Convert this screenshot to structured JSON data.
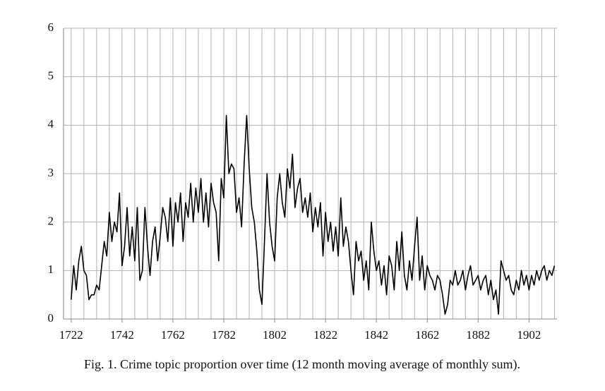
{
  "chart_data": {
    "type": "line",
    "caption": "Fig. 1. Crime topic proportion over time (12 month moving average of monthly sum).",
    "x": [
      1722,
      1723,
      1724,
      1725,
      1726,
      1727,
      1728,
      1729,
      1730,
      1731,
      1732,
      1733,
      1734,
      1735,
      1736,
      1737,
      1738,
      1739,
      1740,
      1741,
      1742,
      1743,
      1744,
      1745,
      1746,
      1747,
      1748,
      1749,
      1750,
      1751,
      1752,
      1753,
      1754,
      1755,
      1756,
      1757,
      1758,
      1759,
      1760,
      1761,
      1762,
      1763,
      1764,
      1765,
      1766,
      1767,
      1768,
      1769,
      1770,
      1771,
      1772,
      1773,
      1774,
      1775,
      1776,
      1777,
      1778,
      1779,
      1780,
      1781,
      1782,
      1783,
      1784,
      1785,
      1786,
      1787,
      1788,
      1789,
      1790,
      1791,
      1792,
      1793,
      1794,
      1795,
      1796,
      1797,
      1798,
      1799,
      1800,
      1801,
      1802,
      1803,
      1804,
      1805,
      1806,
      1807,
      1808,
      1809,
      1810,
      1811,
      1812,
      1813,
      1814,
      1815,
      1816,
      1817,
      1818,
      1819,
      1820,
      1821,
      1822,
      1823,
      1824,
      1825,
      1826,
      1827,
      1828,
      1829,
      1830,
      1831,
      1832,
      1833,
      1834,
      1835,
      1836,
      1837,
      1838,
      1839,
      1840,
      1841,
      1842,
      1843,
      1844,
      1845,
      1846,
      1847,
      1848,
      1849,
      1850,
      1851,
      1852,
      1853,
      1854,
      1855,
      1856,
      1857,
      1858,
      1859,
      1860,
      1861,
      1862,
      1863,
      1864,
      1865,
      1866,
      1867,
      1868,
      1869,
      1870,
      1871,
      1872,
      1873,
      1874,
      1875,
      1876,
      1877,
      1878,
      1879,
      1880,
      1881,
      1882,
      1883,
      1884,
      1885,
      1886,
      1887,
      1888,
      1889,
      1890,
      1891,
      1892,
      1893,
      1894,
      1895,
      1896,
      1897,
      1898,
      1899,
      1900,
      1901,
      1902,
      1903,
      1904,
      1905,
      1906,
      1907,
      1908,
      1909,
      1910,
      1911,
      1912
    ],
    "series": [
      {
        "color": "#000000",
        "values": [
          0.4,
          1.1,
          0.6,
          1.2,
          1.5,
          1.0,
          0.9,
          0.4,
          0.5,
          0.5,
          0.7,
          0.6,
          1.1,
          1.6,
          1.3,
          2.2,
          1.6,
          2.0,
          1.8,
          2.6,
          1.1,
          1.5,
          2.3,
          1.3,
          1.9,
          1.2,
          2.3,
          0.8,
          1.0,
          2.3,
          1.5,
          0.9,
          1.6,
          1.9,
          1.2,
          1.7,
          2.3,
          2.1,
          1.6,
          2.5,
          1.5,
          2.4,
          2.0,
          2.6,
          1.6,
          2.4,
          2.1,
          2.8,
          2.0,
          2.7,
          2.2,
          2.9,
          2.0,
          2.6,
          1.9,
          2.8,
          2.4,
          2.2,
          1.2,
          2.9,
          2.5,
          4.2,
          3.0,
          3.2,
          3.1,
          2.2,
          2.5,
          1.9,
          3.2,
          4.2,
          3.1,
          2.3,
          2.0,
          1.4,
          0.6,
          0.3,
          1.6,
          3.0,
          2.0,
          1.5,
          1.2,
          2.5,
          3.0,
          2.4,
          2.1,
          3.1,
          2.7,
          3.4,
          2.3,
          2.7,
          2.9,
          2.2,
          2.5,
          2.1,
          2.6,
          1.8,
          2.3,
          1.9,
          2.4,
          1.3,
          2.2,
          1.6,
          2.0,
          1.4,
          1.9,
          1.3,
          2.5,
          1.5,
          1.9,
          1.6,
          1.0,
          0.5,
          1.6,
          1.2,
          1.4,
          0.8,
          1.2,
          0.6,
          2.0,
          1.4,
          1.0,
          1.2,
          0.7,
          1.1,
          0.5,
          1.3,
          1.1,
          0.6,
          1.6,
          1.0,
          1.8,
          0.9,
          0.6,
          1.2,
          0.8,
          1.5,
          2.1,
          0.8,
          1.3,
          0.6,
          1.1,
          0.9,
          0.8,
          0.6,
          0.9,
          0.8,
          0.5,
          0.1,
          0.3,
          0.8,
          0.7,
          1.0,
          0.7,
          0.8,
          1.0,
          0.6,
          0.9,
          1.1,
          0.7,
          0.8,
          0.9,
          0.6,
          0.8,
          0.9,
          0.5,
          0.8,
          0.4,
          0.6,
          0.1,
          1.2,
          1.0,
          0.8,
          0.9,
          0.6,
          0.5,
          0.8,
          0.6,
          1.0,
          0.7,
          0.9,
          0.6,
          0.9,
          0.7,
          1.0,
          0.8,
          1.0,
          1.1,
          0.8,
          1.0,
          0.9,
          1.1
        ]
      }
    ],
    "xlim": [
      1719,
      1913
    ],
    "xticks": [
      1722,
      1742,
      1762,
      1782,
      1802,
      1822,
      1842,
      1862,
      1882,
      1902
    ],
    "xgrid": [
      1722,
      1727,
      1732,
      1737,
      1742,
      1747,
      1752,
      1757,
      1762,
      1767,
      1772,
      1777,
      1782,
      1787,
      1792,
      1797,
      1802,
      1807,
      1812,
      1817,
      1822,
      1827,
      1832,
      1837,
      1842,
      1847,
      1852,
      1857,
      1862,
      1867,
      1872,
      1877,
      1882,
      1887,
      1892,
      1897,
      1902,
      1907,
      1912
    ],
    "ylim": [
      0,
      6
    ],
    "yticks": [
      0,
      1,
      2,
      3,
      4,
      5,
      6
    ],
    "grid": true
  }
}
